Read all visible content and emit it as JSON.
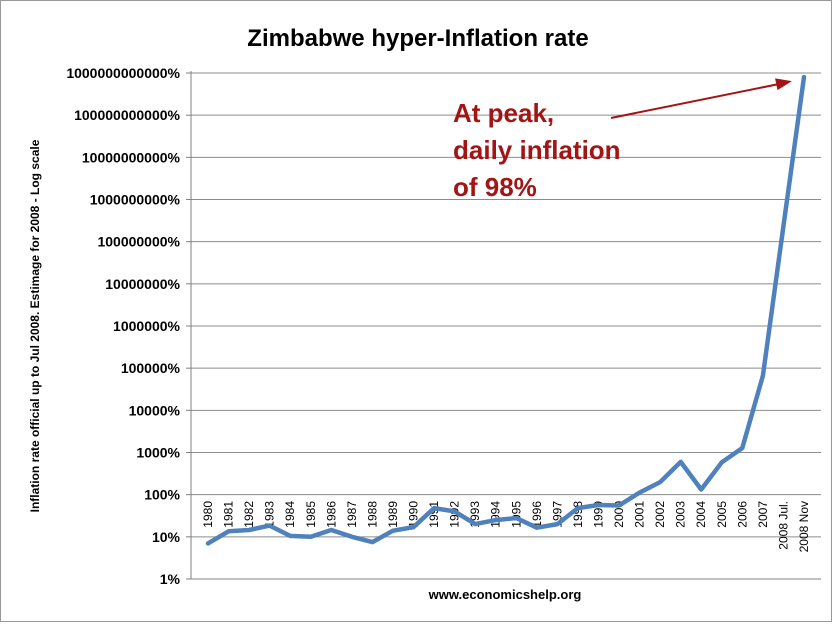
{
  "chart_data": {
    "type": "line",
    "title": "Zimbabwe hyper-Inflation rate",
    "ylabel": "Inflation rate official up to Jul 2008. Estimage for 2008 - Log scale",
    "xlabel": "",
    "source": "www.economicshelp.org",
    "y_scale": "log",
    "ylim": [
      1,
      1000000000000
    ],
    "y_ticks": [
      {
        "value": 1,
        "label": "1%"
      },
      {
        "value": 10,
        "label": "10%"
      },
      {
        "value": 100,
        "label": "100%"
      },
      {
        "value": 1000,
        "label": "1000%"
      },
      {
        "value": 10000,
        "label": "10000%"
      },
      {
        "value": 100000,
        "label": "100000%"
      },
      {
        "value": 1000000,
        "label": "1000000%"
      },
      {
        "value": 10000000,
        "label": "10000000%"
      },
      {
        "value": 100000000,
        "label": "100000000%"
      },
      {
        "value": 1000000000,
        "label": "1000000000%"
      },
      {
        "value": 10000000000,
        "label": "10000000000%"
      },
      {
        "value": 100000000000,
        "label": "100000000000%"
      },
      {
        "value": 1000000000000,
        "label": "1000000000000%"
      }
    ],
    "grid": true,
    "legend": "none",
    "categories": [
      "1980",
      "1981",
      "1982",
      "1983",
      "1984",
      "1985",
      "1986",
      "1987",
      "1988",
      "1989",
      "1990",
      "1991",
      "1992",
      "1993",
      "1994",
      "1995",
      "1996",
      "1997",
      "1998",
      "1999",
      "2000",
      "2001",
      "2002",
      "2003",
      "2004",
      "2005",
      "2006",
      "2007",
      "2008 Jul.",
      "2008 Nov"
    ],
    "values": [
      7,
      13.5,
      14.5,
      18.5,
      10.5,
      10,
      14.5,
      10,
      7.5,
      14,
      17,
      48,
      40,
      20,
      25,
      28,
      16.5,
      20,
      48,
      56.9,
      55.2,
      112.1,
      198.9,
      598.8,
      132.7,
      585.8,
      1281.1,
      66212.3,
      231000000,
      800000000000
    ],
    "line_color": "#4f81bd",
    "annotation": {
      "lines": [
        "At peak,",
        "daily inflation",
        "of 98%"
      ],
      "color": "#a31515",
      "target_category": "2008 Nov"
    }
  }
}
